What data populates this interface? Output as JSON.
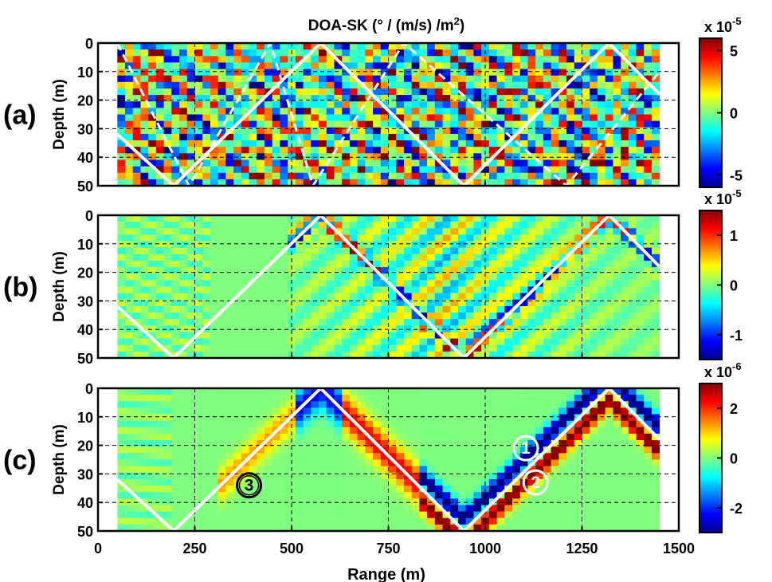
{
  "chart_data": {
    "type": "heatmap",
    "title": "DOA-SK (° / (m/s) /m",
    "title_sup": "2",
    "title_close": ")",
    "xlabel": "Range (m)",
    "xlim": [
      0,
      1500
    ],
    "xticks": [
      0,
      250,
      500,
      750,
      1000,
      1250,
      1500
    ],
    "colormap": "jet",
    "grid": true,
    "ray_color": "#ffffff",
    "ray_path": [
      [
        50,
        32
      ],
      [
        195,
        50
      ],
      [
        575,
        0
      ],
      [
        945,
        50
      ],
      [
        1320,
        0
      ],
      [
        1450,
        18
      ]
    ],
    "panels": [
      {
        "label": "(a)",
        "ylabel": "Depth (m)",
        "ylim": [
          0,
          50
        ],
        "yticks": [
          0,
          10,
          20,
          30,
          40,
          50
        ],
        "colorbar": {
          "exponent_prefix": "x 10",
          "exponent": "-5",
          "ticks": [
            "5",
            "0",
            "-5"
          ],
          "tick_values": [
            5,
            0,
            -5
          ],
          "range": [
            -6,
            6
          ]
        },
        "pattern": "noisy"
      },
      {
        "label": "(b)",
        "ylabel": "Depth (m)",
        "ylim": [
          0,
          50
        ],
        "yticks": [
          0,
          10,
          20,
          30,
          40,
          50
        ],
        "colorbar": {
          "exponent_prefix": "x 10",
          "exponent": "-5",
          "ticks": [
            "1",
            "0",
            "-1"
          ],
          "tick_values": [
            1,
            0,
            -1
          ],
          "range": [
            -1.5,
            1.5
          ]
        },
        "pattern": "banded"
      },
      {
        "label": "(c)",
        "ylabel": "Depth (m)",
        "ylim": [
          0,
          50
        ],
        "yticks": [
          0,
          10,
          20,
          30,
          40,
          50
        ],
        "colorbar": {
          "exponent_prefix": "x 10",
          "exponent": "-6",
          "ticks": [
            "2",
            "0",
            "-2"
          ],
          "tick_values": [
            2,
            0,
            -2
          ],
          "range": [
            -3,
            3
          ]
        },
        "pattern": "smooth",
        "annotations": [
          {
            "text": "1",
            "x": 1105,
            "y": 21,
            "style": "white"
          },
          {
            "text": "2",
            "x": 1130,
            "y": 33,
            "style": "white"
          },
          {
            "text": "3",
            "x": 390,
            "y": 34,
            "style": "black"
          }
        ]
      }
    ]
  }
}
